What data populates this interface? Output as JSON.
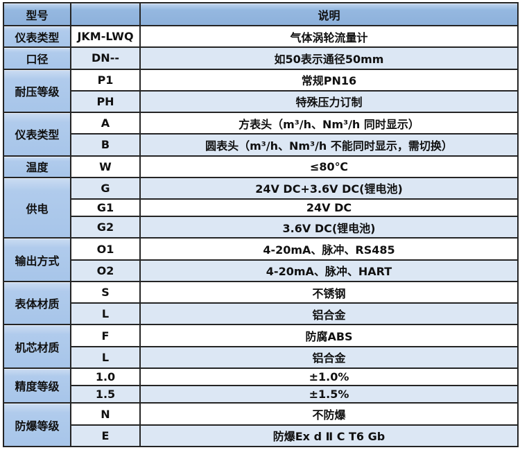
{
  "colors": {
    "header_bg": "#8db1db",
    "group_cell_bg": "#a7c5e9",
    "alt_row_bg": "#dce7f4",
    "row_bg": "#ffffff",
    "border": "#242424",
    "text": "#101010"
  },
  "table": {
    "header": {
      "model_label": "型号",
      "code_label": "",
      "description_label": "说明"
    },
    "groups": [
      {
        "label": "仪表类型",
        "rows": [
          {
            "code": "JKM-LWQ",
            "desc": "气体涡轮流量计"
          }
        ]
      },
      {
        "label": "口径",
        "rows": [
          {
            "code": "DN--",
            "desc": "如50表示通径50mm"
          }
        ]
      },
      {
        "label": "耐压等级",
        "rows": [
          {
            "code": "P1",
            "desc": "常规PN16"
          },
          {
            "code": "PH",
            "desc": "特殊压力订制"
          }
        ]
      },
      {
        "label": "仪表类型",
        "rows": [
          {
            "code": "A",
            "desc": "方表头（m³/h、Nm³/h 同时显示）"
          },
          {
            "code": "B",
            "desc": "圆表头（m³/h、Nm³/h 不能同时显示，需切换）"
          }
        ]
      },
      {
        "label": "温度",
        "rows": [
          {
            "code": "W",
            "desc": "≤80℃"
          }
        ]
      },
      {
        "label": "供电",
        "rows": [
          {
            "code": "G",
            "desc": "24V DC+3.6V DC(锂电池)"
          },
          {
            "code": "G1",
            "desc": "24V DC"
          },
          {
            "code": "G2",
            "desc": "3.6V DC(锂电池)"
          }
        ]
      },
      {
        "label": "输出方式",
        "rows": [
          {
            "code": "O1",
            "desc": "4-20mA、脉冲、RS485"
          },
          {
            "code": "O2",
            "desc": "4-20mA、脉冲、HART"
          }
        ]
      },
      {
        "label": "表体材质",
        "rows": [
          {
            "code": "S",
            "desc": "不锈钢"
          },
          {
            "code": "L",
            "desc": "铝合金"
          }
        ]
      },
      {
        "label": "机芯材质",
        "rows": [
          {
            "code": "F",
            "desc": "防腐ABS"
          },
          {
            "code": "L",
            "desc": "铝合金"
          }
        ]
      },
      {
        "label": "精度等级",
        "rows": [
          {
            "code": "1.0",
            "desc": "±1.0%"
          },
          {
            "code": "1.5",
            "desc": "±1.5%"
          }
        ]
      },
      {
        "label": "防爆等级",
        "rows": [
          {
            "code": "N",
            "desc": "不防爆"
          },
          {
            "code": "E",
            "desc": "防爆Ex d Ⅱ C T6 Gb"
          }
        ]
      }
    ]
  }
}
